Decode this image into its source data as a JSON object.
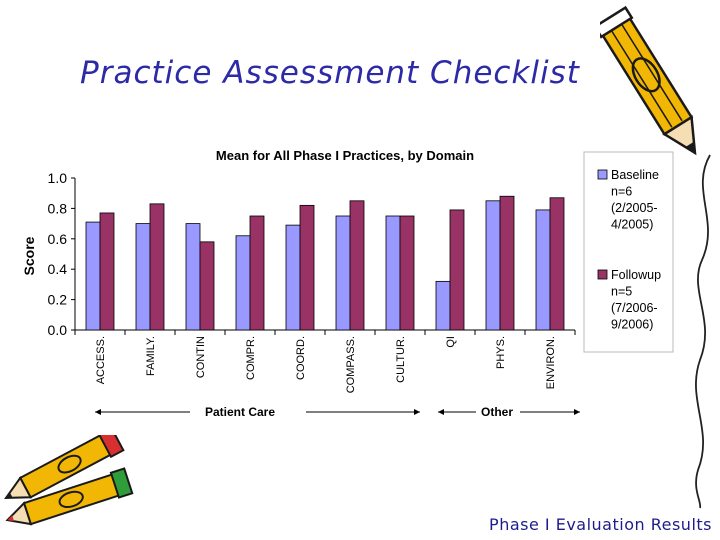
{
  "slide": {
    "title": "Practice Assessment Checklist",
    "footer": "Phase I Evaluation Results"
  },
  "chart_data": {
    "type": "bar",
    "title": "Mean for All Phase I Practices, by Domain",
    "xlabel": "",
    "ylabel": "Score",
    "ylim": [
      0,
      1.0
    ],
    "yticks": [
      "0.0",
      "0.2",
      "0.4",
      "0.6",
      "0.8",
      "1.0"
    ],
    "categories": [
      "ACCESS.",
      "FAMILY.",
      "CONTIN",
      "COMPR.",
      "COORD.",
      "COMPASS.",
      "CULTUR.",
      "QI",
      "PHYS.",
      "ENVIRON."
    ],
    "series": [
      {
        "name": "Baseline n=6 (2/2005-4/2005)",
        "legend_lines": [
          "Baseline",
          "n=6",
          "(2/2005-",
          "4/2005)"
        ],
        "color": "#9999ff",
        "values": [
          0.71,
          0.7,
          0.7,
          0.62,
          0.69,
          0.75,
          0.75,
          0.32,
          0.85,
          0.79
        ]
      },
      {
        "name": "Followup n=5 (7/2006-9/2006)",
        "legend_lines": [
          "Followup",
          "n=5",
          "(7/2006-",
          "9/2006)"
        ],
        "color": "#993366",
        "values": [
          0.77,
          0.83,
          0.58,
          0.75,
          0.82,
          0.85,
          0.75,
          0.79,
          0.88,
          0.87
        ]
      }
    ],
    "groups": [
      {
        "label": "Patient Care"
      },
      {
        "label": "Other"
      }
    ],
    "legend_position": "right",
    "grid": false
  }
}
